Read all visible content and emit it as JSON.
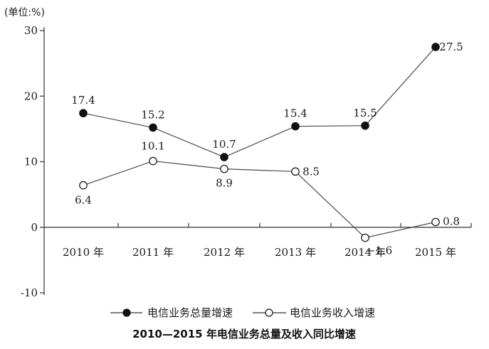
{
  "chart_data": {
    "type": "line",
    "title": "2010—2015 年电信业务总量及收入同比增速",
    "ylabel": "(单位:%)",
    "xlabel": "",
    "categories": [
      "2010 年",
      "2011 年",
      "2012 年",
      "2013 年",
      "2014 年",
      "2015 年"
    ],
    "ylim": [
      -10,
      30
    ],
    "yticks": [
      30,
      20,
      10,
      0,
      -10
    ],
    "ytick_labels": [
      "30",
      "20",
      "10",
      "0",
      "-10"
    ],
    "grid": false,
    "legend_position": "bottom",
    "series": [
      {
        "name": "电信业务总量增速",
        "marker": "filled-circle",
        "color": "#111111",
        "values": [
          17.4,
          15.2,
          10.7,
          15.4,
          15.5,
          27.5
        ],
        "value_labels": [
          "17.4",
          "15.2",
          "10.7",
          "15.4",
          "15.5",
          "27.5"
        ]
      },
      {
        "name": "电信业务收入增速",
        "marker": "open-circle",
        "color": "#111111",
        "values": [
          6.4,
          10.1,
          8.9,
          8.5,
          -1.6,
          0.8
        ],
        "value_labels": [
          "6.4",
          "10.1",
          "8.9",
          "8.5",
          "−1.6",
          "0.8"
        ]
      }
    ]
  }
}
